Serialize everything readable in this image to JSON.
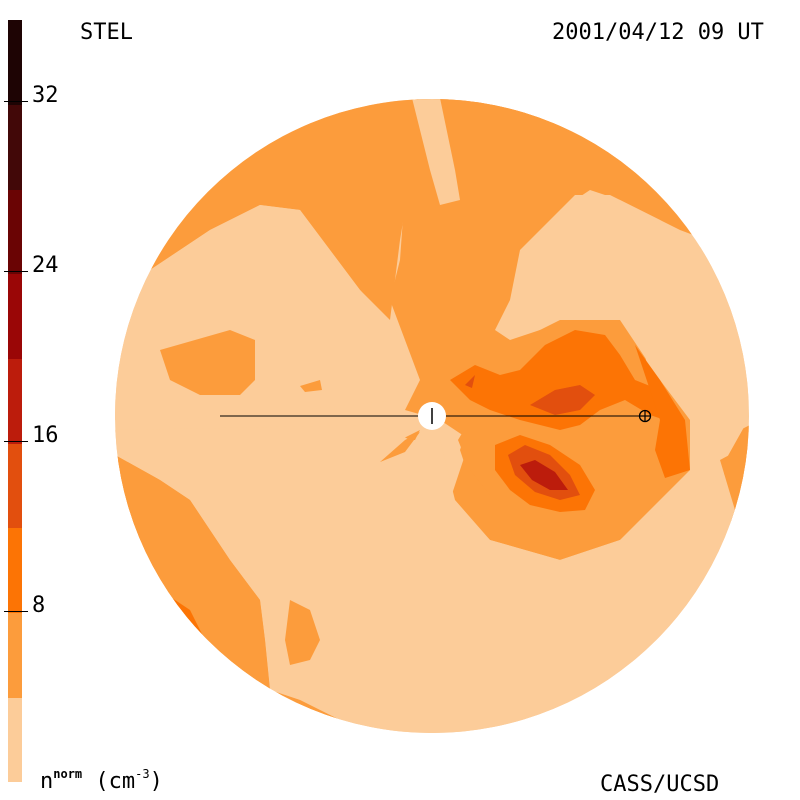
{
  "header": {
    "instrument": "STEL",
    "timestamp": "2001/04/12 09 UT"
  },
  "footer": {
    "credit": "CASS/UCSD"
  },
  "colorbar": {
    "unit_base": "n",
    "unit_sup": "norm",
    "unit_rest": "(cm",
    "unit_exp": "-3",
    "unit_close": ")",
    "tick_labels": [
      "8",
      "16",
      "24",
      "32"
    ],
    "levels": [
      {
        "min": 0,
        "max": 4,
        "color": "#fccc99"
      },
      {
        "min": 4,
        "max": 8,
        "color": "#fc9c3c"
      },
      {
        "min": 8,
        "max": 12,
        "color": "#fc7405"
      },
      {
        "min": 12,
        "max": 16,
        "color": "#e24f0e"
      },
      {
        "min": 16,
        "max": 20,
        "color": "#bc1c0c"
      },
      {
        "min": 20,
        "max": 24,
        "color": "#9a0606"
      },
      {
        "min": 24,
        "max": 28,
        "color": "#6a0404"
      },
      {
        "min": 28,
        "max": 32,
        "color": "#420808"
      },
      {
        "min": 32,
        "max": 36,
        "color": "#1e0404"
      }
    ]
  },
  "map_colors": {
    "background": "#fccc99",
    "level1": "#fc9c3c",
    "level2": "#fc7405",
    "level3": "#e24f0e",
    "level4": "#bc1c0c",
    "sun": "#ffffff"
  },
  "markers": {
    "sun": "sun-disk",
    "earth": "earth-symbol"
  }
}
